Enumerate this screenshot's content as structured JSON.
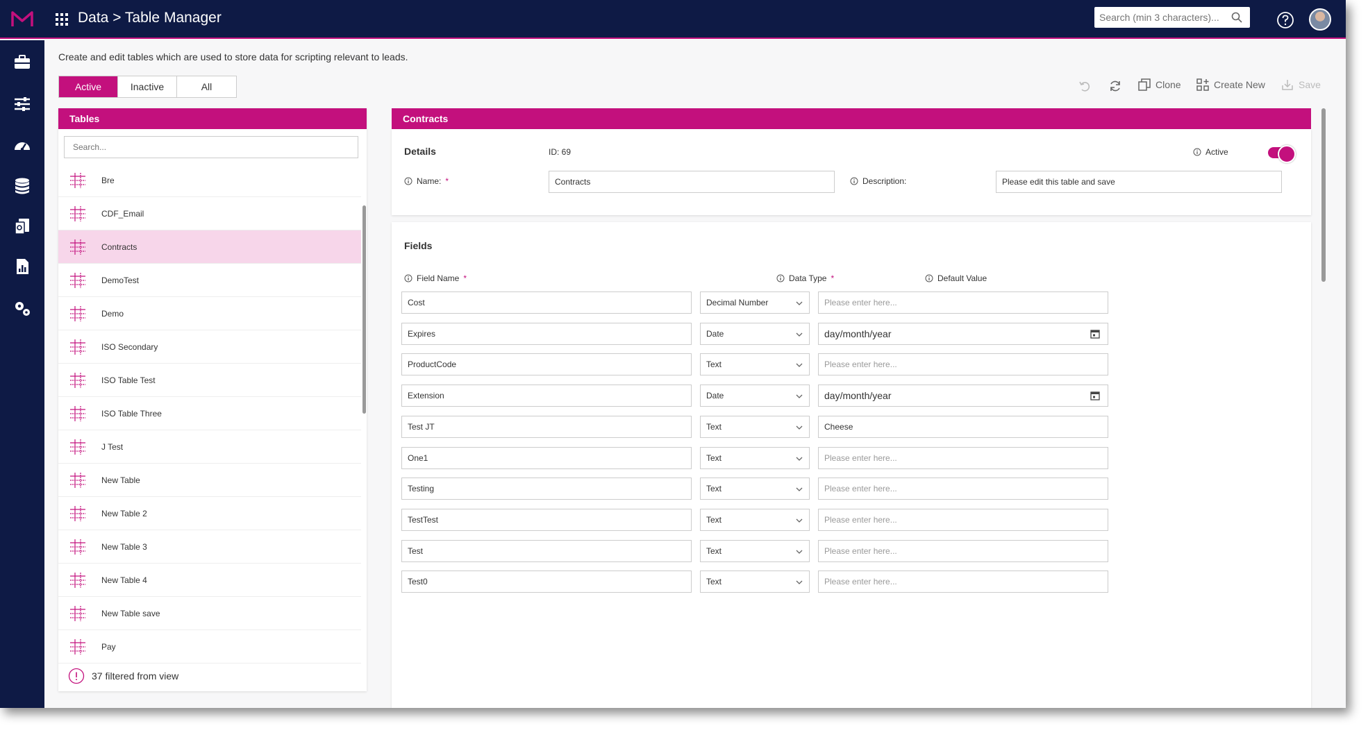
{
  "header": {
    "title": "Data > Table Manager",
    "search_placeholder": "Search (min 3 characters)..."
  },
  "sidebar": {
    "icons": [
      "briefcase-icon",
      "sliders-icon",
      "dashboard-icon",
      "database-icon",
      "documents-icon",
      "report-icon",
      "settings-icon"
    ]
  },
  "page": {
    "description": "Create and edit tables which are used to store data for scripting relevant to leads."
  },
  "filter_tabs": [
    {
      "label": "Active",
      "selected": true
    },
    {
      "label": "Inactive",
      "selected": false
    },
    {
      "label": "All",
      "selected": false
    }
  ],
  "toolbar": {
    "clone": "Clone",
    "create_new": "Create New",
    "save": "Save"
  },
  "tables_panel": {
    "title": "Tables",
    "search_placeholder": "Search...",
    "items": [
      "Bre",
      "CDF_Email",
      "Contracts",
      "DemoTest",
      " Demo",
      "ISO Secondary",
      "ISO Table Test",
      "ISO Table Three",
      "J Test",
      "New Table",
      "New Table 2",
      "New Table 3",
      "New Table 4",
      "New Table save",
      "Pay"
    ],
    "selected_index": 2,
    "filtered_text": "37 filtered from view"
  },
  "details": {
    "header": "Contracts",
    "section_title": "Details",
    "id_text": "ID: 69",
    "active_label": "Active",
    "name_label": "Name:",
    "required_mark": "*",
    "name_value": "Contracts",
    "description_label": "Description:",
    "description_value": "Please edit this table and save"
  },
  "fields_section": {
    "title": "Fields",
    "col_field_name": "Field Name",
    "col_data_type": "Data Type",
    "col_default_value": "Default Value",
    "rows": [
      {
        "name": "Cost",
        "type": "Decimal Number",
        "default": "",
        "date": false
      },
      {
        "name": "Expires",
        "type": "Date",
        "default": "day/month/year",
        "date": true
      },
      {
        "name": "ProductCode",
        "type": "Text",
        "default": "",
        "date": false
      },
      {
        "name": "Extension",
        "type": "Date",
        "default": "day/month/year",
        "date": true
      },
      {
        "name": "Test JT",
        "type": "Text",
        "default": "Cheese",
        "date": false
      },
      {
        "name": "One1",
        "type": "Text",
        "default": "",
        "date": false
      },
      {
        "name": "Testing",
        "type": "Text",
        "default": "",
        "date": false
      },
      {
        "name": "TestTest",
        "type": "Text",
        "default": "",
        "date": false
      },
      {
        "name": "Test",
        "type": "Text",
        "default": "",
        "date": false
      },
      {
        "name": "Test0",
        "type": "Text",
        "default": "",
        "date": false
      }
    ],
    "default_placeholder": "Please enter here..."
  },
  "colors": {
    "accent": "#c3107d",
    "nav": "#0e1a45",
    "selected_row": "#f7d6ea"
  }
}
